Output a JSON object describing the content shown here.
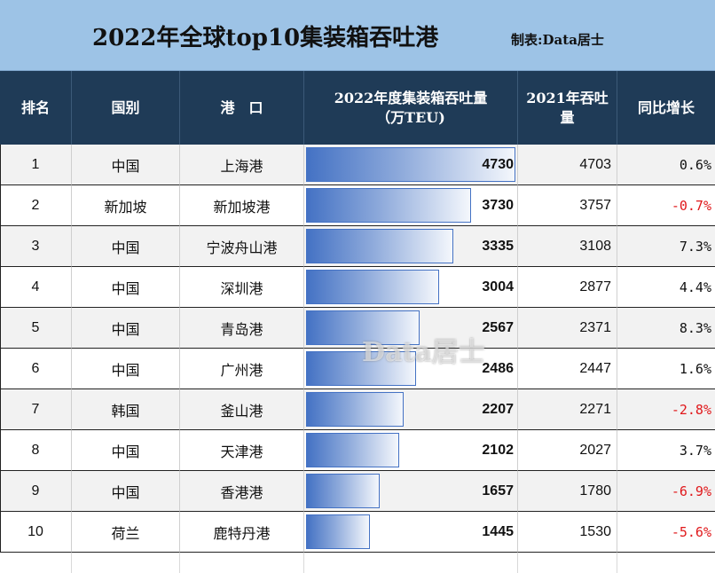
{
  "title": "2022年全球top10集装箱吞吐港",
  "credit": "制表:Data居士",
  "watermark": "Data居士",
  "headers": {
    "rank": "排名",
    "country": "国别",
    "port": "港　口",
    "v2022": "2022年度集装箱吞吐量\n（万TEU)",
    "v2021": "2021年吞吐\n量",
    "yoy": "同比增长"
  },
  "colors": {
    "title_bg": "#9dc3e6",
    "header_bg": "#1f3b57",
    "bar": "#4472c4",
    "negative": "#e0181b"
  },
  "chart_data": {
    "type": "table",
    "bar_max": 4730,
    "rows": [
      {
        "rank": "1",
        "country": "中国",
        "port": "上海港",
        "v2022": 4730,
        "v2021": "4703",
        "yoy": "0.6%",
        "negative": false
      },
      {
        "rank": "2",
        "country": "新加坡",
        "port": "新加坡港",
        "v2022": 3730,
        "v2021": "3757",
        "yoy": "-0.7%",
        "negative": true
      },
      {
        "rank": "3",
        "country": "中国",
        "port": "宁波舟山港",
        "v2022": 3335,
        "v2021": "3108",
        "yoy": "7.3%",
        "negative": false
      },
      {
        "rank": "4",
        "country": "中国",
        "port": "深圳港",
        "v2022": 3004,
        "v2021": "2877",
        "yoy": "4.4%",
        "negative": false
      },
      {
        "rank": "5",
        "country": "中国",
        "port": "青岛港",
        "v2022": 2567,
        "v2021": "2371",
        "yoy": "8.3%",
        "negative": false
      },
      {
        "rank": "6",
        "country": "中国",
        "port": "广州港",
        "v2022": 2486,
        "v2021": "2447",
        "yoy": "1.6%",
        "negative": false
      },
      {
        "rank": "7",
        "country": "韩国",
        "port": "釜山港",
        "v2022": 2207,
        "v2021": "2271",
        "yoy": "-2.8%",
        "negative": true
      },
      {
        "rank": "8",
        "country": "中国",
        "port": "天津港",
        "v2022": 2102,
        "v2021": "2027",
        "yoy": "3.7%",
        "negative": false
      },
      {
        "rank": "9",
        "country": "中国",
        "port": "香港港",
        "v2022": 1657,
        "v2021": "1780",
        "yoy": "-6.9%",
        "negative": true
      },
      {
        "rank": "10",
        "country": "荷兰",
        "port": "鹿特丹港",
        "v2022": 1445,
        "v2021": "1530",
        "yoy": "-5.6%",
        "negative": true
      }
    ]
  }
}
